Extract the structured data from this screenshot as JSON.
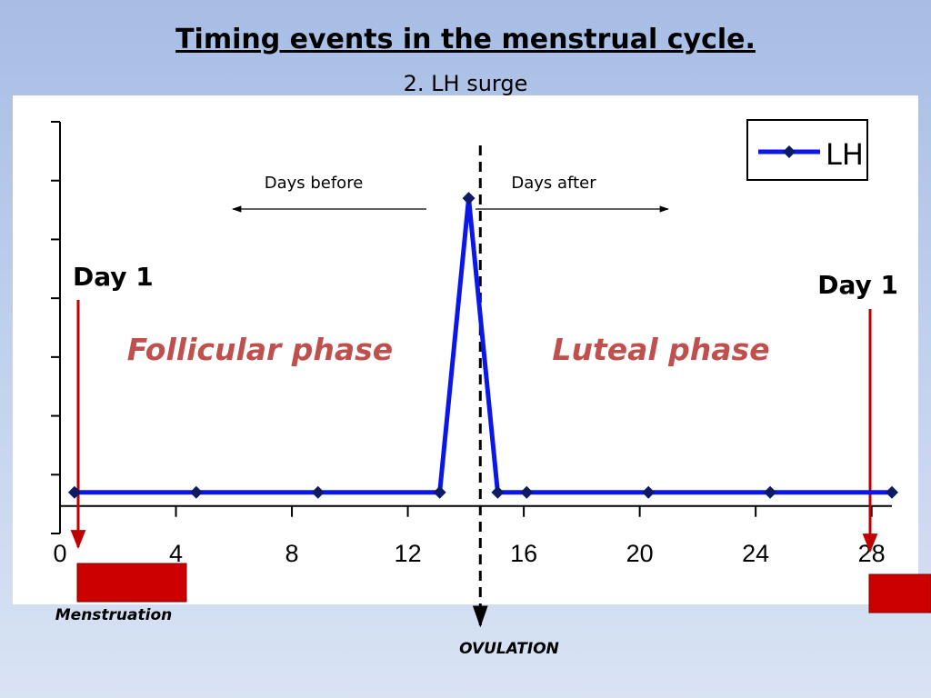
{
  "slide": {
    "title": "Timing events in the menstrual cycle.",
    "subtitle": "2. LH surge"
  },
  "annotations": {
    "days_before": "Days before",
    "days_after": "Days after",
    "day1_left": "Day 1",
    "day1_right": "Day 1",
    "follicular": "Follicular phase",
    "luteal": "Luteal phase",
    "menstruation": "Menstruation",
    "ovulation": "OVULATION"
  },
  "colors": {
    "series": "#0b16e8",
    "marker": "#0d1a66",
    "phase_text": "#c0504d",
    "menstruation_fill": "#cc0000",
    "day1_arrow": "#c00000"
  },
  "chart_data": {
    "type": "line",
    "x": [
      0.5,
      4.7,
      8.9,
      13.1,
      14.1,
      15.1,
      16.1,
      20.3,
      24.5,
      28.7
    ],
    "series": [
      {
        "name": "LH",
        "values": [
          0,
          0,
          0,
          0,
          5,
          0,
          0,
          0,
          0,
          0
        ]
      }
    ],
    "x_ticks": [
      0,
      4,
      8,
      12,
      16,
      20,
      24,
      28
    ],
    "xlim": [
      0,
      28.7
    ],
    "ylim": [
      -0.7,
      6.3
    ],
    "ovulation_day": 14.5,
    "legend": "top-right",
    "grid": false,
    "title": "",
    "xlabel": "",
    "ylabel": ""
  }
}
